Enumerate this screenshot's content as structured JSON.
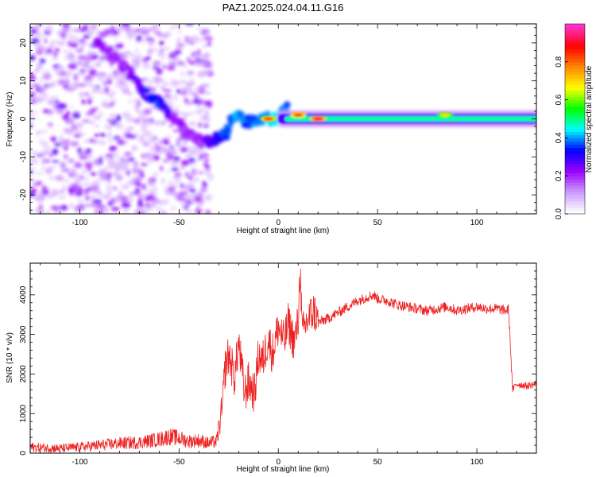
{
  "title": "PAZ1.2025.024.04.11.G16",
  "colors": {
    "snr_line": "#ee2222",
    "frame": "#000000",
    "colormap": [
      "#ffffff",
      "#cc99ff",
      "#9900ff",
      "#0000ff",
      "#00ffff",
      "#00ff00",
      "#ffff00",
      "#ff8800",
      "#ff0000",
      "#ff33cc"
    ]
  },
  "chart_data": [
    {
      "type": "heatmap",
      "title": "",
      "xlabel": "Height of straight line (km)",
      "ylabel": "Frequency (Hz)",
      "xlim": [
        -125,
        130
      ],
      "ylim": [
        -25,
        25
      ],
      "x_ticks": [
        "-100",
        "-50",
        "0",
        "50",
        "100"
      ],
      "x_tick_values": [
        -100,
        -50,
        0,
        50,
        100
      ],
      "y_ticks": [
        "-20",
        "-10",
        "0",
        "10",
        "20"
      ],
      "y_tick_values": [
        -20,
        -10,
        0,
        10,
        20
      ],
      "colorbar": {
        "label": "Normalized spectral amplitude",
        "range": [
          0,
          1
        ],
        "ticks": [
          "0.0",
          "0.2",
          "0.4",
          "0.6",
          "0.8"
        ],
        "tick_values": [
          0.0,
          0.2,
          0.4,
          0.6,
          0.8
        ]
      },
      "features": {
        "noise_region_x": [
          -125,
          -34
        ],
        "descending_trace": [
          {
            "x": -92,
            "y": 20,
            "amp": 0.25
          },
          {
            "x": -85,
            "y": 17,
            "amp": 0.2
          },
          {
            "x": -78,
            "y": 14,
            "amp": 0.2
          },
          {
            "x": -72,
            "y": 10,
            "amp": 0.25
          },
          {
            "x": -66,
            "y": 6,
            "amp": 0.3
          },
          {
            "x": -60,
            "y": 4,
            "amp": 0.35
          },
          {
            "x": -55,
            "y": 1,
            "amp": 0.25
          },
          {
            "x": -50,
            "y": -1,
            "amp": 0.2
          },
          {
            "x": -45,
            "y": -4,
            "amp": 0.2
          },
          {
            "x": -38,
            "y": -6,
            "amp": 0.2
          },
          {
            "x": -33,
            "y": -6,
            "amp": 0.3
          },
          {
            "x": -27,
            "y": -4,
            "amp": 0.35
          },
          {
            "x": -21,
            "y": 1,
            "amp": 0.4
          },
          {
            "x": -15,
            "y": -1,
            "amp": 0.35
          },
          {
            "x": -8,
            "y": 0,
            "amp": 0.4
          },
          {
            "x": 0,
            "y": 0,
            "amp": 0.45
          },
          {
            "x": 5,
            "y": 3,
            "amp": 0.35
          }
        ],
        "constant_band": {
          "x_start": 0,
          "x_end": 130,
          "y_center": 0,
          "amp": 0.5
        },
        "hot_spots": [
          {
            "x": -5,
            "y": 0,
            "amp": 0.85
          },
          {
            "x": 10,
            "y": 1,
            "amp": 0.85
          },
          {
            "x": 20,
            "y": 0,
            "amp": 0.9
          },
          {
            "x": 84,
            "y": 1,
            "amp": 0.7
          }
        ]
      }
    },
    {
      "type": "line",
      "title": "",
      "xlabel": "Height of straight line (km)",
      "ylabel": "SNR (10 * v/v)",
      "xlim": [
        -125,
        130
      ],
      "ylim": [
        0,
        4800
      ],
      "x_ticks": [
        "-100",
        "-50",
        "0",
        "50",
        "100"
      ],
      "x_tick_values": [
        -100,
        -50,
        0,
        50,
        100
      ],
      "y_ticks": [
        "0",
        "1000",
        "2000",
        "3000",
        "4000"
      ],
      "y_tick_values": [
        0,
        1000,
        2000,
        3000,
        4000
      ],
      "grid": false,
      "series": [
        {
          "x": [
            -125,
            -110,
            -100,
            -90,
            -80,
            -70,
            -60,
            -55,
            -50,
            -45,
            -40,
            -35,
            -31,
            -28,
            -27,
            -25,
            -22,
            -20,
            -17,
            -15,
            -12,
            -10,
            -8,
            -5,
            -3,
            0,
            3,
            5,
            8,
            10,
            11,
            12,
            15,
            18,
            20,
            25,
            30,
            35,
            40,
            45,
            48,
            50,
            55,
            60,
            65,
            70,
            75,
            80,
            85,
            90,
            95,
            100,
            105,
            110,
            115,
            116,
            118,
            120,
            125,
            130
          ],
          "y": [
            150,
            120,
            150,
            200,
            250,
            270,
            350,
            420,
            380,
            300,
            320,
            250,
            300,
            1200,
            2100,
            2500,
            1900,
            2800,
            1500,
            1800,
            1500,
            2500,
            2300,
            2900,
            2500,
            3200,
            2800,
            3300,
            2800,
            3300,
            4800,
            3000,
            3400,
            3600,
            3300,
            3400,
            3550,
            3700,
            3850,
            3950,
            4000,
            3900,
            3850,
            3750,
            3700,
            3650,
            3600,
            3650,
            3700,
            3600,
            3650,
            3700,
            3650,
            3650,
            3600,
            3650,
            1600,
            1750,
            1700,
            1750
          ]
        }
      ]
    }
  ]
}
